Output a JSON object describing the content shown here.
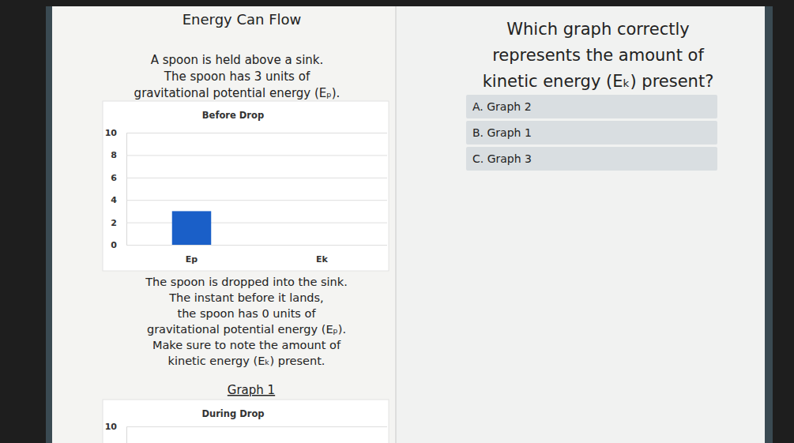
{
  "left": {
    "heading": "Energy Can Flow",
    "intro": [
      "A spoon is held above a sink.",
      "The spoon has 3 units of",
      "gravitational potential energy (Eₚ)."
    ],
    "middle": [
      "The spoon is dropped into the sink.",
      "The instant before it lands,",
      "the spoon has 0 units of",
      "gravitational potential energy (Eₚ).",
      "Make sure to note the amount of",
      "kinetic energy (Eₖ) present."
    ],
    "graph_label": "Graph 1"
  },
  "question": {
    "lines": [
      "Which graph correctly",
      "represents the amount of",
      "kinetic energy (Eₖ) present?"
    ],
    "options": [
      "A. Graph 2",
      "B. Graph 1",
      "C. Graph 3"
    ]
  },
  "chart_data": [
    {
      "type": "bar",
      "title": "Before Drop",
      "categories": [
        "Ep",
        "Ek"
      ],
      "values": [
        3,
        0
      ],
      "color": "#1a5fc8",
      "ylim": [
        0,
        10
      ],
      "yticks": [
        0,
        2,
        4,
        6,
        8,
        10
      ],
      "grid": true
    },
    {
      "type": "bar",
      "title": "During Drop",
      "ylim": [
        0,
        10
      ],
      "yticks": [
        10
      ],
      "grid": true
    }
  ]
}
